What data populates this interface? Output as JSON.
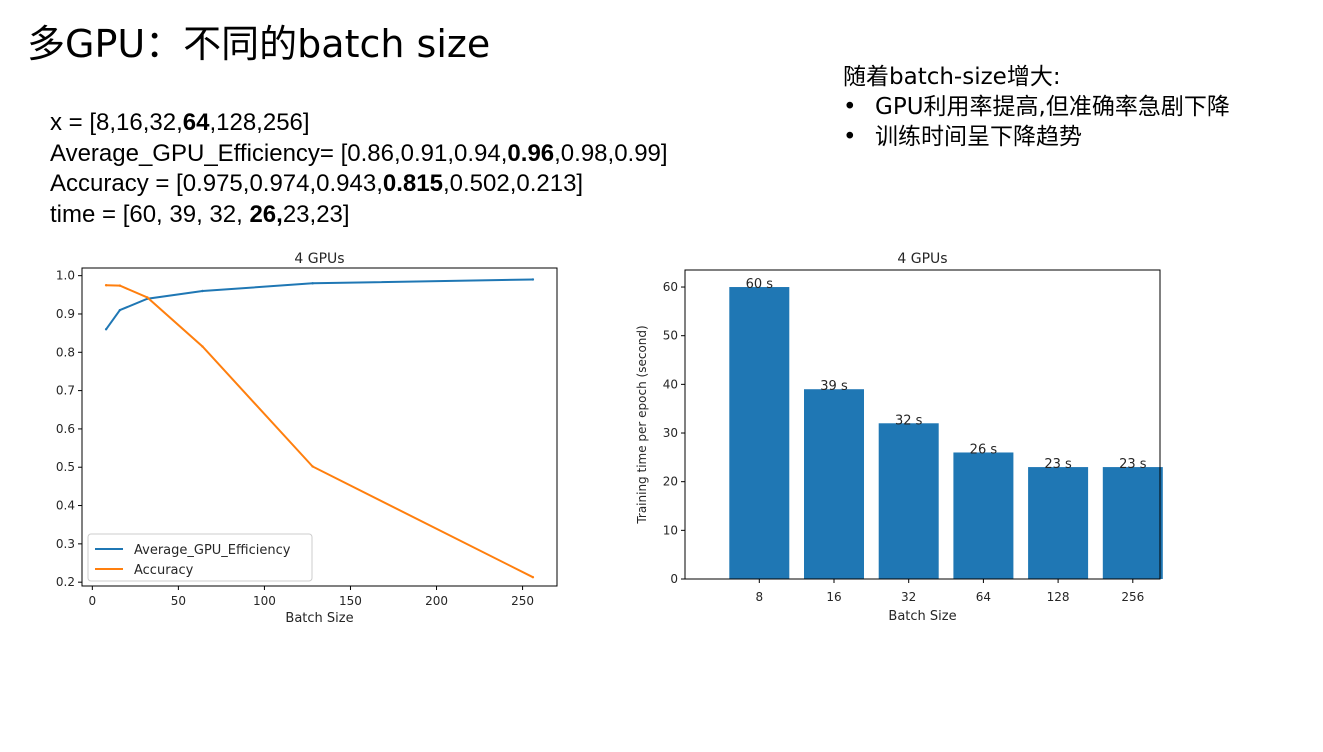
{
  "slide": {
    "title": "多GPU：不同的batch size"
  },
  "code": {
    "x": {
      "prefix": "x = [8,16,32,",
      "bold": "64",
      "suffix": ",128,256]"
    },
    "efficiency": {
      "prefix": "Average_GPU_Efficiency= [0.86,0.91,0.94,",
      "bold": "0.96",
      "suffix": ",0.98,0.99]"
    },
    "accuracy": {
      "prefix": "Accuracy = [0.975,0.974,0.943,",
      "bold": "0.815",
      "suffix": ",0.502,0.213]"
    },
    "time": {
      "prefix": "time = [60, 39, 32, ",
      "bold": "26,",
      "suffix": "23,23]"
    }
  },
  "notes": {
    "heading": "随着batch-size增大:",
    "bullet_symbol": "•",
    "items": [
      "GPU利用率提高,但准确率急剧下降",
      "训练时间呈下降趋势"
    ]
  },
  "chart_data": [
    {
      "type": "line",
      "title": "4 GPUs",
      "xlabel": "Batch Size",
      "ylabel": "",
      "x": [
        8,
        16,
        32,
        64,
        128,
        256
      ],
      "xlim": [
        -6,
        270
      ],
      "ylim": [
        0.19,
        1.02
      ],
      "xticks": [
        0,
        50,
        100,
        150,
        200,
        250
      ],
      "yticks": [
        0.2,
        0.3,
        0.4,
        0.5,
        0.6,
        0.7,
        0.8,
        0.9,
        1.0
      ],
      "ytick_labels": [
        "0.2",
        "0.3",
        "0.4",
        "0.5",
        "0.6",
        "0.7",
        "0.8",
        "0.9",
        "1.0"
      ],
      "legend_position": "lower-left",
      "grid": false,
      "series": [
        {
          "name": "Average_GPU_Efficiency",
          "color": "#1f77b4",
          "values": [
            0.86,
            0.91,
            0.94,
            0.96,
            0.98,
            0.99
          ]
        },
        {
          "name": "Accuracy",
          "color": "#ff7f0e",
          "values": [
            0.975,
            0.974,
            0.943,
            0.815,
            0.502,
            0.213
          ]
        }
      ]
    },
    {
      "type": "bar",
      "title": "4 GPUs",
      "xlabel": "Batch Size",
      "ylabel": "Training time per epoch (second)",
      "categories": [
        "8",
        "16",
        "32",
        "64",
        "128",
        "256"
      ],
      "values": [
        60,
        39,
        32,
        26,
        23,
        23
      ],
      "data_labels": [
        "60 s",
        "39 s",
        "32 s",
        "26 s",
        "23 s",
        "23 s"
      ],
      "ylim": [
        0,
        63.5
      ],
      "yticks": [
        0,
        10,
        20,
        30,
        40,
        50,
        60
      ],
      "color": "#1f77b4",
      "grid": false
    }
  ]
}
